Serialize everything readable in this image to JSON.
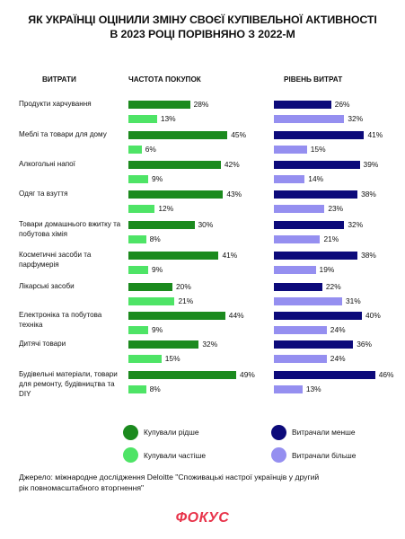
{
  "title_line1": "ЯК УКРАЇНЦІ ОЦІНИЛИ ЗМІНУ СВОЄЇ КУПІВЕЛЬНОЇ АКТИВНОСТІ",
  "title_line2": "В 2023 РОЦІ ПОРІВНЯНО З 2022-М",
  "headers": {
    "categories": "ВИТРАТИ",
    "frequency": "ЧАСТОТА ПОКУПОК",
    "spending": "РІВЕНЬ ВИТРАТ"
  },
  "colors": {
    "bought_less": "#1b8a1e",
    "bought_more": "#4ee466",
    "spent_less": "#0c0a7a",
    "spent_more": "#958ff0",
    "logo": "#e8334a"
  },
  "chart_data": {
    "type": "bar",
    "orientation": "horizontal",
    "categories": [
      "Продукти харчування",
      "Меблі та товари для дому",
      "Алкогольні напої",
      "Одяг та взуття",
      "Товари домашнього вжитку та побутова хімія",
      "Косметичні засоби та парфумерія",
      "Лікарські засоби",
      "Електроніка та побутова техніка",
      "Дитячі товари",
      "Будівельні матеріали, товари для ремонту, будівництва та DIY"
    ],
    "panels": [
      {
        "title": "ЧАСТОТА ПОКУПОК",
        "series": [
          {
            "name": "Купували рідше",
            "values": [
              28,
              45,
              42,
              43,
              30,
              41,
              20,
              44,
              32,
              49
            ]
          },
          {
            "name": "Купували частіше",
            "values": [
              13,
              6,
              9,
              12,
              8,
              9,
              21,
              9,
              15,
              8
            ]
          }
        ]
      },
      {
        "title": "РІВЕНЬ ВИТРАТ",
        "series": [
          {
            "name": "Витрачали менше",
            "values": [
              26,
              41,
              39,
              38,
              32,
              38,
              22,
              40,
              36,
              46
            ]
          },
          {
            "name": "Витрачали більше",
            "values": [
              32,
              15,
              14,
              23,
              21,
              19,
              31,
              24,
              24,
              13
            ]
          }
        ]
      }
    ],
    "unit": "%",
    "xlim": [
      0,
      50
    ]
  },
  "legend": {
    "bought_less": "Купували рідше",
    "bought_more": "Купували частіше",
    "spent_less": "Витрачали менше",
    "spent_more": "Витрачали більше"
  },
  "source_line1": "Джерело: міжнародне дослідження Deloitte \"Споживацькі настрої українців у другий",
  "source_line2": "рік повномасштабного вторгнення\"",
  "logo": "ФОКУС"
}
